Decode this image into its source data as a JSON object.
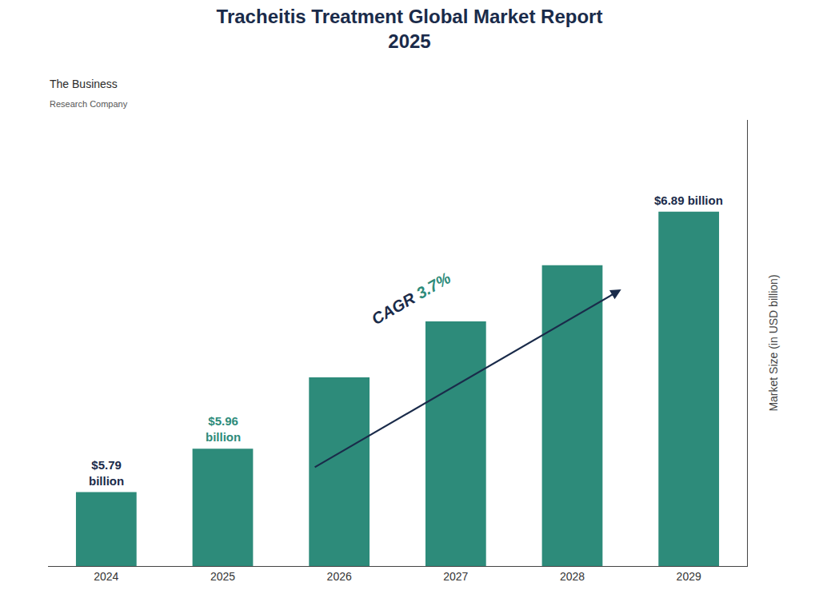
{
  "chart_data": {
    "type": "bar",
    "title": "Tracheitis Treatment Global Market Report",
    "subtitle": "2025",
    "ylabel": "Market Size (in USD billion)",
    "categories": [
      "2024",
      "2025",
      "2026",
      "2027",
      "2028",
      "2029"
    ],
    "values": [
      5.79,
      5.96,
      6.24,
      6.46,
      6.68,
      6.89
    ],
    "color": "#2d8b7a",
    "ylim": [
      5.5,
      7.25
    ],
    "grid": false,
    "tick_labels": "x",
    "annotations": [
      {
        "text": "$5.79\nbillion",
        "category": "2024",
        "color": "#1a2b4a"
      },
      {
        "text": "$5.96\nbillion",
        "category": "2025",
        "color": "#2d8b7a"
      },
      {
        "text": "$6.89 billion",
        "category": "2029",
        "color": "#1a2b4a"
      },
      {
        "parts": [
          {
            "text": "CAGR ",
            "color": "#1a2b4a"
          },
          {
            "text": "3.7%",
            "color": "#2d8b7a"
          }
        ],
        "arrow": true,
        "color": "#1a2b4a"
      },
      {
        "text": "The Business",
        "color": "#2a2a2a"
      },
      {
        "text": "Research Company",
        "color": "#555555"
      }
    ]
  }
}
